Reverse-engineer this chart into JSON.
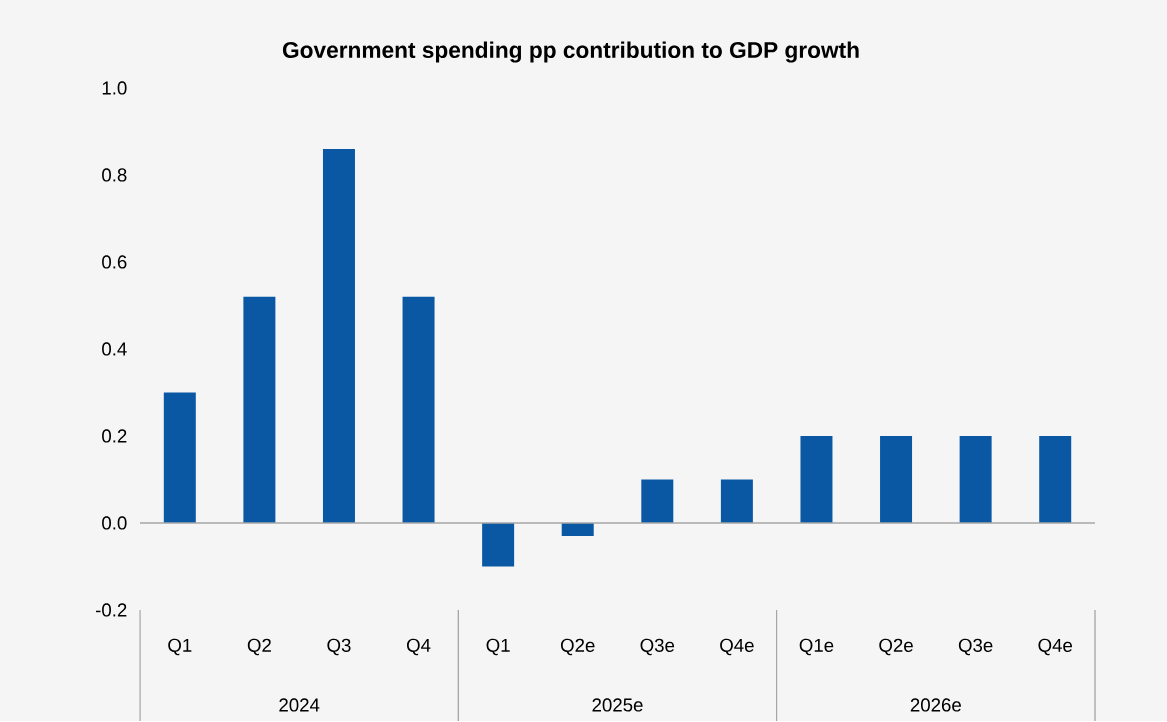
{
  "chart_data": {
    "type": "bar",
    "title": "Government spending pp contribution to GDP growth",
    "categories": [
      "Q1",
      "Q2",
      "Q3",
      "Q4",
      "Q1",
      "Q2e",
      "Q3e",
      "Q4e",
      "Q1e",
      "Q2e",
      "Q3e",
      "Q4e"
    ],
    "values": [
      0.3,
      0.52,
      0.86,
      0.52,
      -0.1,
      -0.03,
      0.1,
      0.1,
      0.2,
      0.2,
      0.2,
      0.2
    ],
    "color": "#0a58a4",
    "ylim": [
      -0.2,
      1.0
    ],
    "yticks": [
      {
        "value": -0.2,
        "label": "-0.2"
      },
      {
        "value": 0.0,
        "label": "0.0"
      },
      {
        "value": 0.2,
        "label": "0.2"
      },
      {
        "value": 0.4,
        "label": "0.4"
      },
      {
        "value": 0.6,
        "label": "0.6"
      },
      {
        "value": 0.8,
        "label": "0.8"
      },
      {
        "value": 1.0,
        "label": "1.0"
      }
    ],
    "annotations": [
      "2024",
      "2025e",
      "2026e"
    ]
  }
}
